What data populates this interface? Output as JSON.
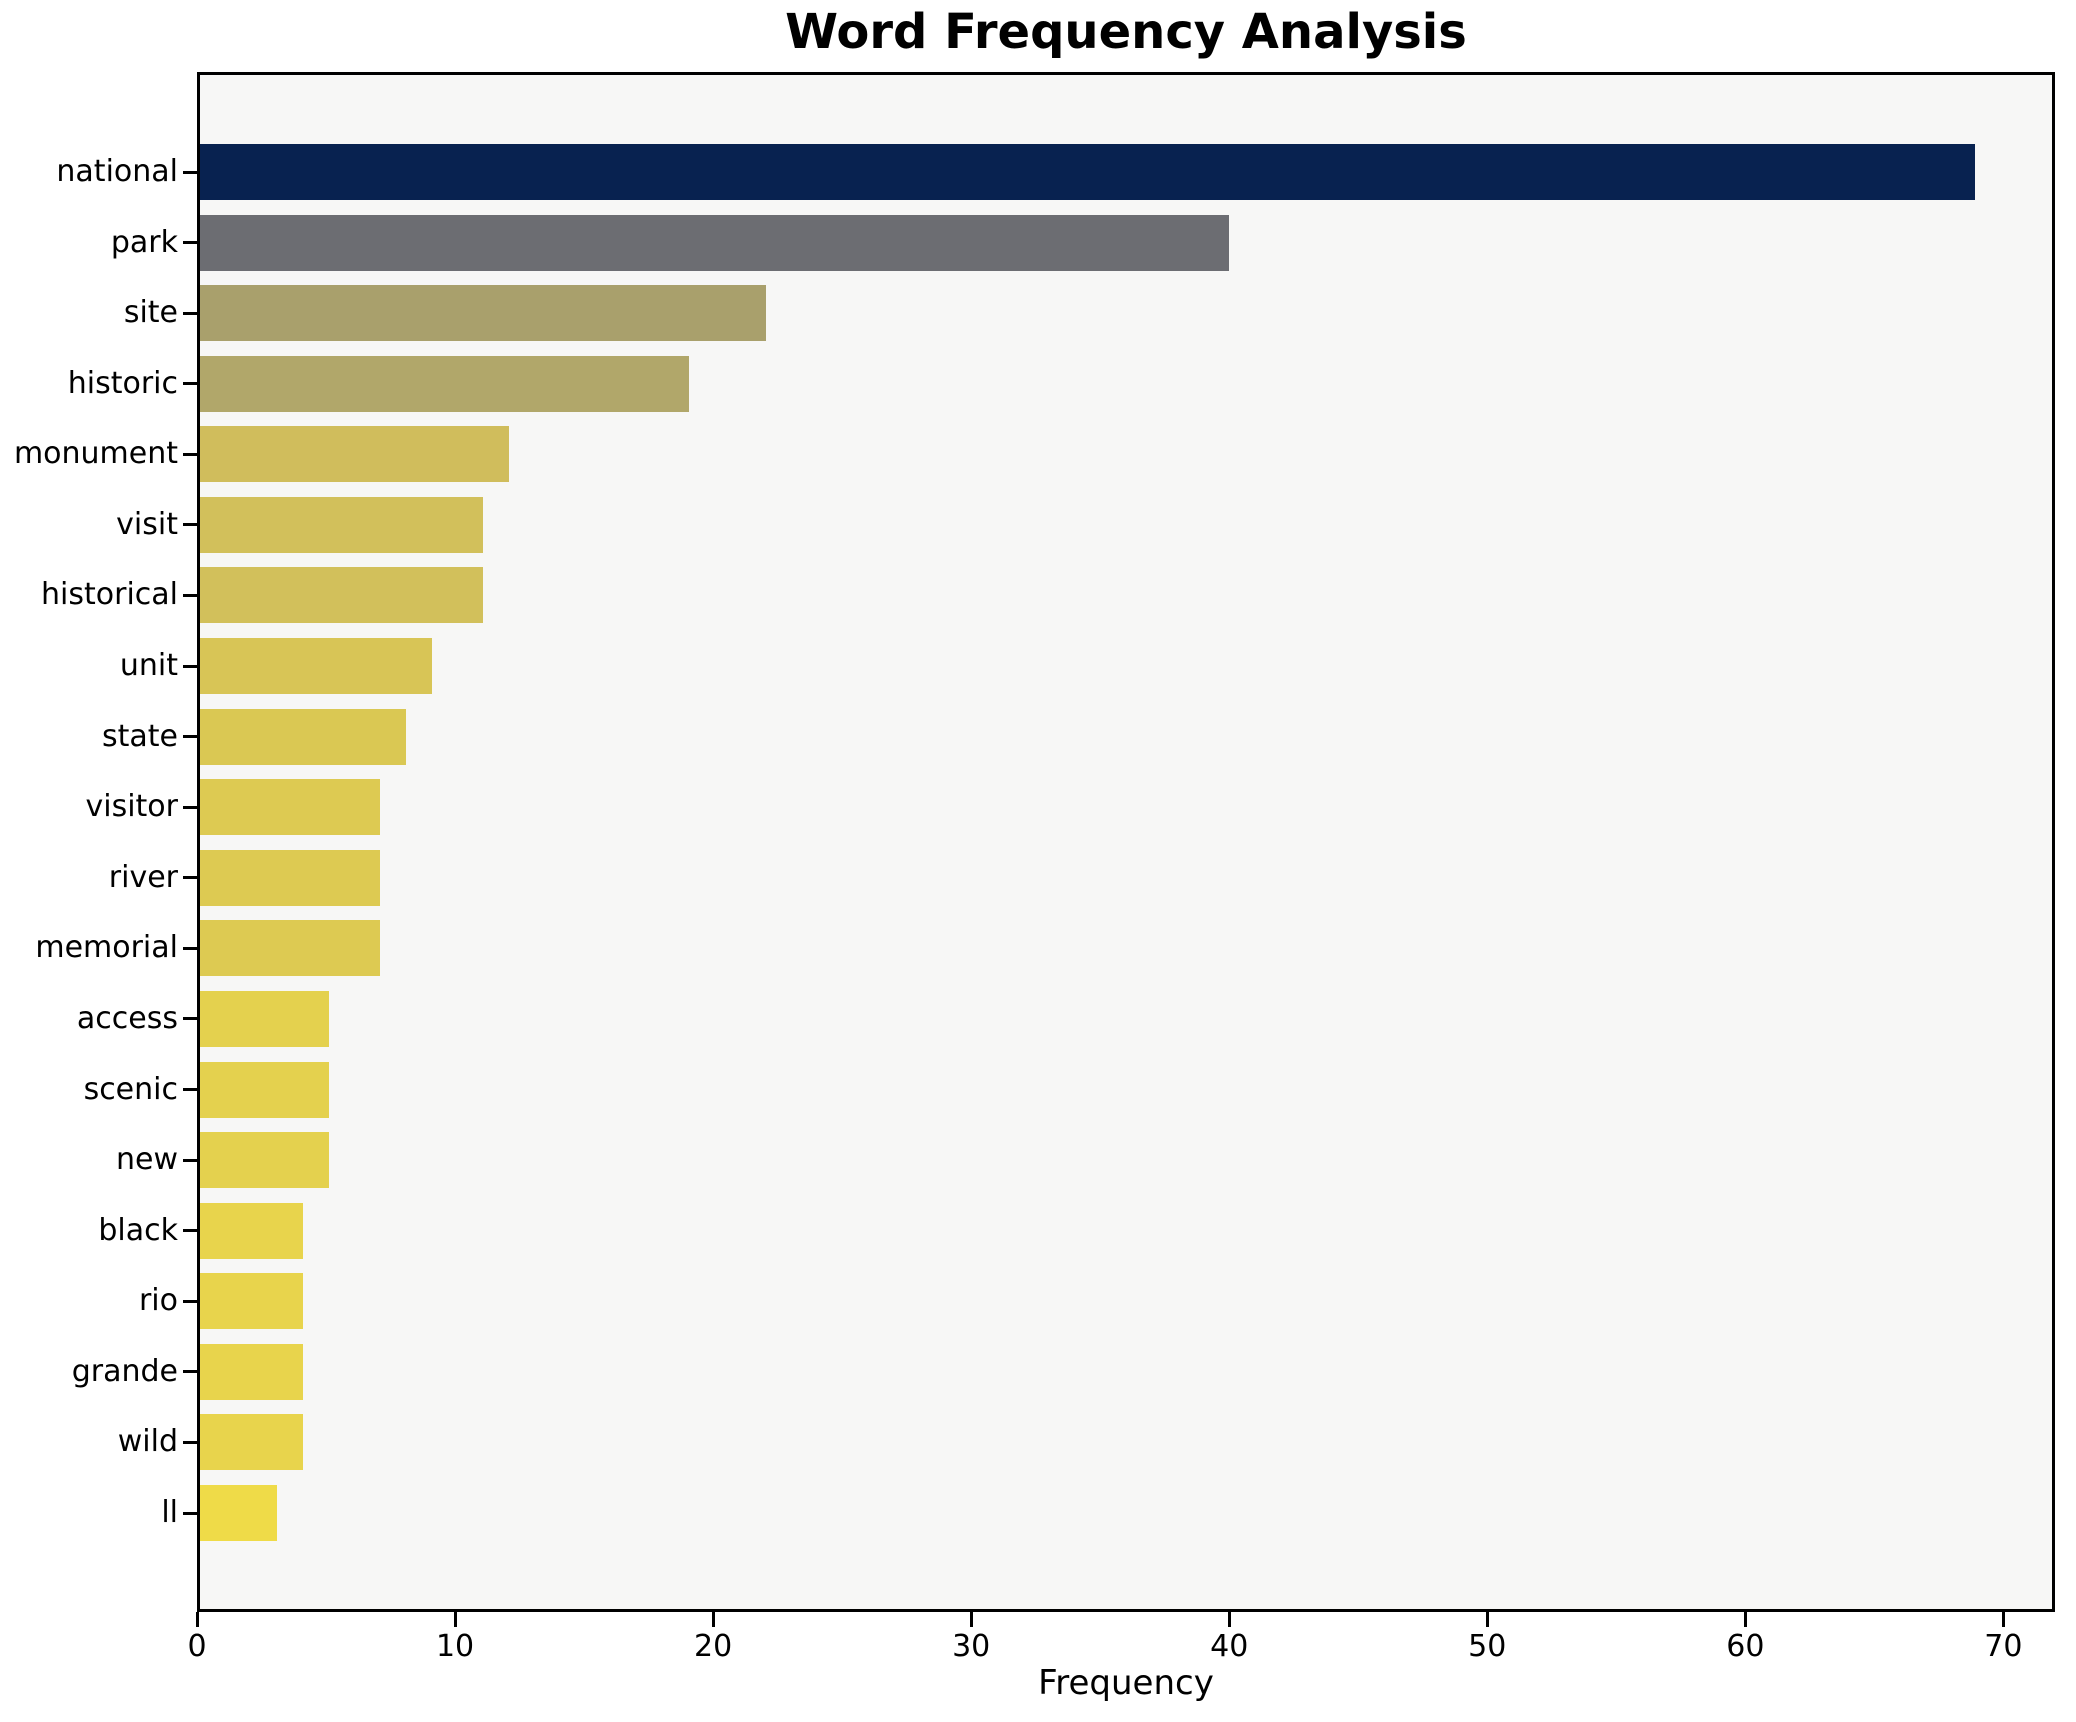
{
  "chart_data": {
    "type": "bar",
    "orientation": "horizontal",
    "title": "Word Frequency Analysis",
    "xlabel": "Frequency",
    "ylabel": "",
    "categories": [
      "national",
      "park",
      "site",
      "historic",
      "monument",
      "visit",
      "historical",
      "unit",
      "state",
      "visitor",
      "river",
      "memorial",
      "access",
      "scenic",
      "new",
      "black",
      "rio",
      "grande",
      "wild",
      "ll"
    ],
    "values": [
      69,
      40,
      22,
      19,
      12,
      11,
      11,
      9,
      8,
      7,
      7,
      7,
      5,
      5,
      5,
      4,
      4,
      4,
      4,
      3
    ],
    "bar_colors": [
      "#082250",
      "#6c6d72",
      "#a9a06c",
      "#b1a76a",
      "#d0bd5c",
      "#d2c05b",
      "#d2c05b",
      "#d8c556",
      "#dac853",
      "#ddca52",
      "#ddca52",
      "#ddca52",
      "#e4d14e",
      "#e4d14e",
      "#e4d14e",
      "#e8d44c",
      "#e8d44c",
      "#e8d44c",
      "#e8d44c",
      "#efdb48"
    ],
    "xlim": [
      0,
      72
    ],
    "x_ticks": [
      0,
      10,
      20,
      30,
      40,
      50,
      60,
      70
    ],
    "grid": false,
    "legend_position": "none",
    "plot_background": "#f7f7f6",
    "spine_color": "#000000",
    "axis_text_color": "#000000"
  }
}
